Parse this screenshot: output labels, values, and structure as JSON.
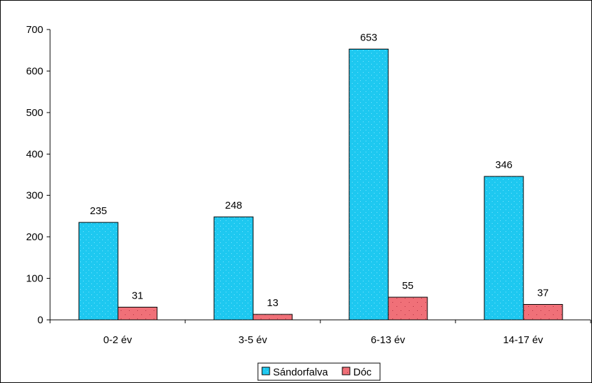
{
  "chart_data": {
    "type": "bar",
    "categories": [
      "0-2 év",
      "3-5 év",
      "6-13 év",
      "14-17 év"
    ],
    "series": [
      {
        "name": "Sándorfalva",
        "values": [
          235,
          248,
          653,
          346
        ],
        "color": "#1EC8F0",
        "pattern": "dotted"
      },
      {
        "name": "Dóc",
        "values": [
          31,
          13,
          55,
          37
        ],
        "color": "#F07078",
        "pattern": "dotted"
      }
    ],
    "y_ticks": [
      0,
      100,
      200,
      300,
      400,
      500,
      600,
      700
    ],
    "ylim": [
      0,
      700
    ],
    "data_labels": true,
    "grid": false,
    "legend_position": "bottom"
  }
}
